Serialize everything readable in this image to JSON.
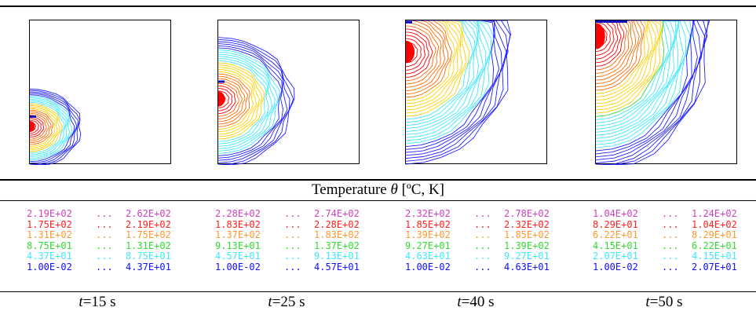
{
  "header": {
    "label": "Temperature",
    "symbol": "θ",
    "unit": "[ºC, K]"
  },
  "level_colors": [
    "#d040c0",
    "#ff2020",
    "#ff9a30",
    "#30dd30",
    "#40e8ff",
    "#1010ff"
  ],
  "panels": [
    {
      "time_var": "t",
      "time_value": "=15 s",
      "legend": [
        {
          "lo": "2.19E+02",
          "dots": "...",
          "hi": "2.62E+02"
        },
        {
          "lo": "1.75E+02",
          "dots": "...",
          "hi": "2.19E+02"
        },
        {
          "lo": "1.31E+02",
          "dots": "...",
          "hi": "1.75E+02"
        },
        {
          "lo": "8.75E+01",
          "dots": "...",
          "hi": "1.31E+02"
        },
        {
          "lo": "4.37E+01",
          "dots": "...",
          "hi": "8.75E+01"
        },
        {
          "lo": "1.00E-02",
          "dots": "...",
          "hi": "4.37E+01"
        }
      ]
    },
    {
      "time_var": "t",
      "time_value": "=25 s",
      "legend": [
        {
          "lo": "2.28E+02",
          "dots": "...",
          "hi": "2.74E+02"
        },
        {
          "lo": "1.83E+02",
          "dots": "...",
          "hi": "2.28E+02"
        },
        {
          "lo": "1.37E+02",
          "dots": "...",
          "hi": "1.83E+02"
        },
        {
          "lo": "9.13E+01",
          "dots": "...",
          "hi": "1.37E+02"
        },
        {
          "lo": "4.57E+01",
          "dots": "...",
          "hi": "9.13E+01"
        },
        {
          "lo": "1.00E-02",
          "dots": "...",
          "hi": "4.57E+01"
        }
      ]
    },
    {
      "time_var": "t",
      "time_value": "=40 s",
      "legend": [
        {
          "lo": "2.32E+02",
          "dots": "...",
          "hi": "2.78E+02"
        },
        {
          "lo": "1.85E+02",
          "dots": "...",
          "hi": "2.32E+02"
        },
        {
          "lo": "1.39E+02",
          "dots": "...",
          "hi": "1.85E+02"
        },
        {
          "lo": "9.27E+01",
          "dots": "...",
          "hi": "1.39E+02"
        },
        {
          "lo": "4.63E+01",
          "dots": "...",
          "hi": "9.27E+01"
        },
        {
          "lo": "1.00E-02",
          "dots": "...",
          "hi": "4.63E+01"
        }
      ]
    },
    {
      "time_var": "t",
      "time_value": "=50 s",
      "legend": [
        {
          "lo": "1.04E+02",
          "dots": "...",
          "hi": "1.24E+02"
        },
        {
          "lo": "8.29E+01",
          "dots": "...",
          "hi": "1.04E+02"
        },
        {
          "lo": "6.22E+01",
          "dots": "...",
          "hi": "8.29E+01"
        },
        {
          "lo": "4.15E+01",
          "dots": "...",
          "hi": "6.22E+01"
        },
        {
          "lo": "2.07E+01",
          "dots": "...",
          "hi": "4.15E+01"
        },
        {
          "lo": "1.00E-02",
          "dots": "...",
          "hi": "2.07E+01"
        }
      ]
    }
  ]
}
